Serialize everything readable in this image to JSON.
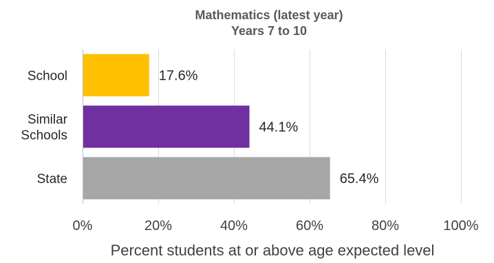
{
  "chart_data": {
    "type": "bar",
    "orientation": "horizontal",
    "title": "Mathematics (latest year)",
    "subtitle": "Years 7 to 10",
    "categories": [
      [
        "School"
      ],
      [
        "Similar",
        "Schools"
      ],
      [
        "State"
      ]
    ],
    "values": [
      17.6,
      44.1,
      65.4
    ],
    "value_labels": [
      "17.6%",
      "44.1%",
      "65.4%"
    ],
    "colors": [
      "#ffc000",
      "#7030a0",
      "#a6a6a6"
    ],
    "xlabel": "Percent students at or above age expected level",
    "xlim": [
      0,
      100
    ],
    "xticks": [
      0,
      20,
      40,
      60,
      80,
      100
    ],
    "xtick_labels": [
      "0%",
      "20%",
      "40%",
      "60%",
      "80%",
      "100%"
    ],
    "grid": true,
    "legend": "none"
  }
}
